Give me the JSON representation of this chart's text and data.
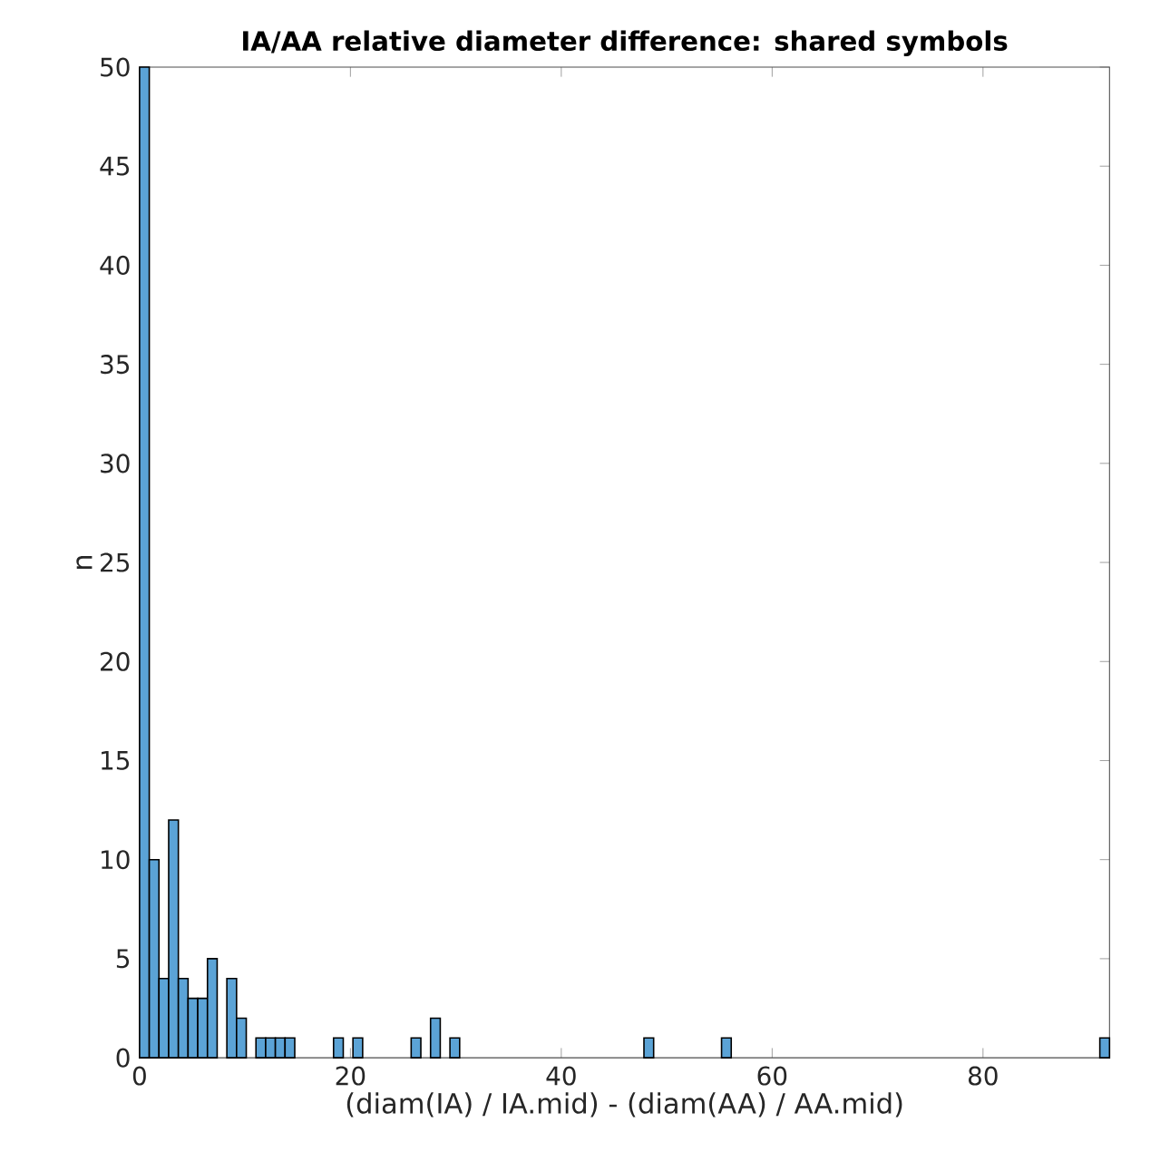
{
  "chart_data": {
    "type": "histogram",
    "title": "IA/AA relative diameter difference: shared symbols",
    "xlabel": "(diam(IA) / IA.mid) - (diam(AA) / AA.mid)",
    "ylabel": "n",
    "color": "#5ba3d6",
    "bins": [
      0,
      0.92,
      1.84,
      2.76,
      3.68,
      4.6,
      5.52,
      6.44,
      7.36,
      8.28,
      9.2,
      10.12,
      11.04,
      11.96,
      12.88,
      13.8,
      14.72,
      15.64,
      16.56,
      17.48,
      18.4,
      19.32,
      20.24,
      21.16,
      22.08,
      23,
      23.92,
      24.84,
      25.76,
      26.68,
      27.6,
      28.52,
      29.44,
      30.36,
      31.28,
      32.2,
      33.12,
      34.04,
      34.96,
      35.88,
      36.8,
      37.72,
      38.64,
      39.56,
      40.48,
      41.4,
      42.32,
      43.24,
      44.16,
      45.08,
      46,
      46.92,
      47.84,
      48.76,
      49.68,
      50.6,
      51.52,
      52.44,
      53.36,
      54.28,
      55.2,
      56.12,
      57.04,
      57.96,
      58.88,
      59.8,
      60.72,
      61.64,
      62.56,
      63.48,
      64.4,
      65.32,
      66.24,
      67.16,
      68.08,
      69,
      69.92,
      70.84,
      71.76,
      72.68,
      73.6,
      74.52,
      75.44,
      76.36,
      77.28,
      78.2,
      79.12,
      80.04,
      80.96,
      81.88,
      82.8,
      83.72,
      84.64,
      85.56,
      86.48,
      87.4,
      88.32,
      89.24,
      90.16,
      91.08,
      92
    ],
    "values": [
      50,
      10,
      4,
      12,
      4,
      3,
      3,
      5,
      0,
      4,
      2,
      0,
      1,
      1,
      1,
      1,
      0,
      0,
      0,
      0,
      1,
      0,
      1,
      0,
      0,
      0,
      0,
      0,
      1,
      0,
      2,
      0,
      1,
      0,
      0,
      0,
      0,
      0,
      0,
      0,
      0,
      0,
      0,
      0,
      0,
      0,
      0,
      0,
      0,
      0,
      0,
      0,
      1,
      0,
      0,
      0,
      0,
      0,
      0,
      0,
      1,
      0,
      0,
      0,
      0,
      0,
      0,
      0,
      0,
      0,
      0,
      0,
      0,
      0,
      0,
      0,
      0,
      0,
      0,
      0,
      0,
      0,
      0,
      0,
      0,
      0,
      0,
      0,
      0,
      0,
      0,
      0,
      0,
      0,
      0,
      0,
      0,
      0,
      0,
      1
    ],
    "xlim": [
      0,
      92
    ],
    "ylim": [
      0,
      50
    ],
    "xticks": [
      0,
      20,
      40,
      60,
      80
    ],
    "yticks": [
      0,
      5,
      10,
      15,
      20,
      25,
      30,
      35,
      40,
      45,
      50
    ]
  }
}
